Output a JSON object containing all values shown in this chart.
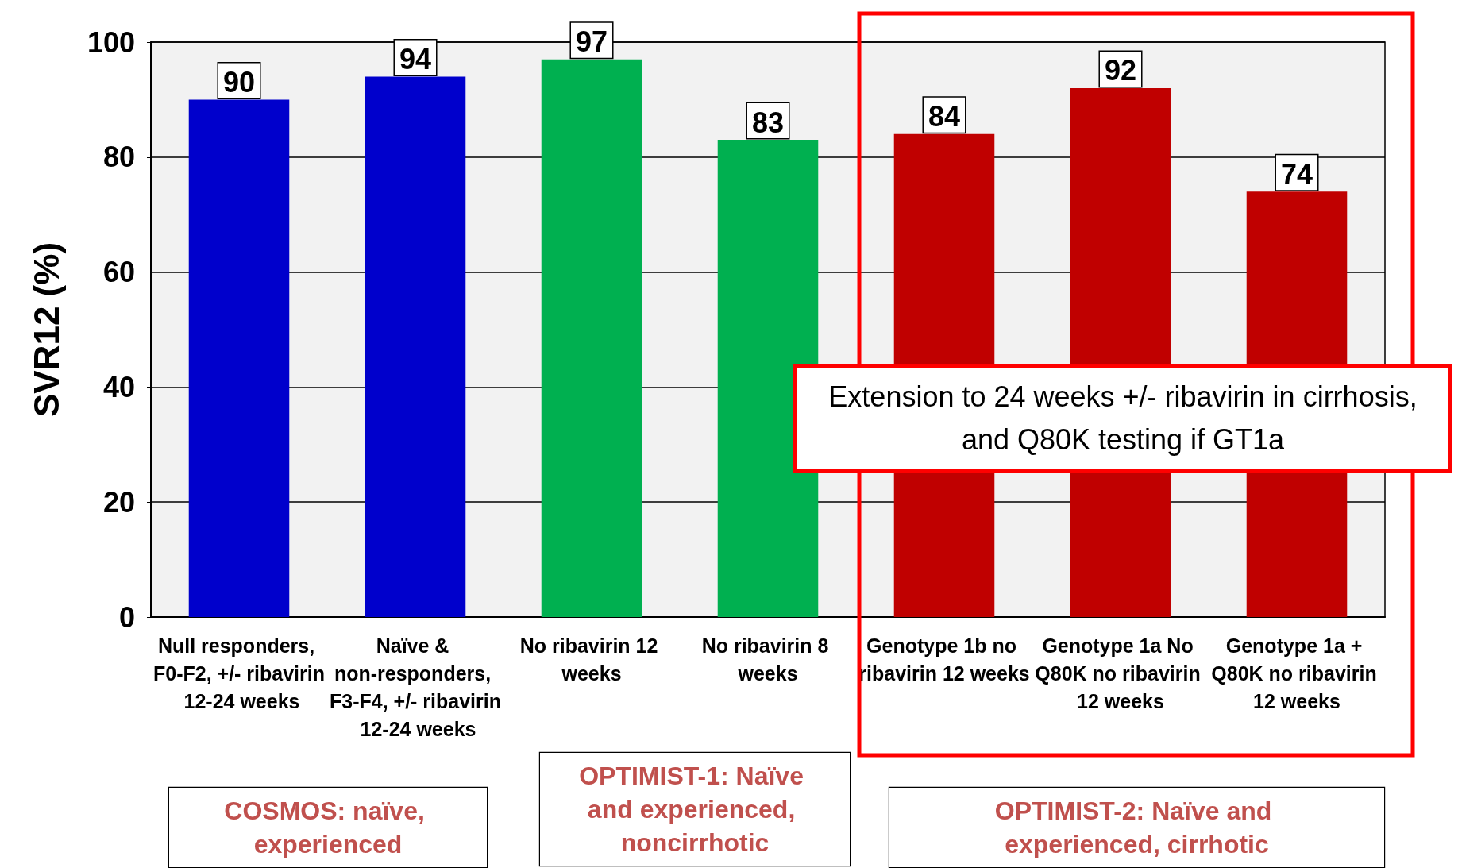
{
  "chart_data": {
    "type": "bar",
    "ylabel": "SVR12 (%)",
    "categories": [
      "Null responders, F0-F2, +/- ribavirin 12-24 weeks",
      "Naïve & non-responders, F3-F4, +/- ribavirin 12-24 weeks",
      "No ribavirin 12 weeks",
      "No ribavirin 8 weeks",
      "Genotype 1b no ribavirin 12 weeks",
      "Genotype 1a No Q80K no ribavirin 12 weeks",
      "Genotype 1a + Q80K no ribavirin 12 weeks"
    ],
    "values": [
      90,
      94,
      97,
      83,
      84,
      92,
      74
    ],
    "colors": [
      "#0000cc",
      "#0000cc",
      "#00b050",
      "#00b050",
      "#c00000",
      "#c00000",
      "#c00000"
    ],
    "ylim": [
      0,
      100
    ],
    "yticks": [
      0,
      20,
      40,
      60,
      80,
      100
    ],
    "grid": "y",
    "data_labels": true,
    "annotations": [
      "COSMOS: naïve, experienced",
      "OPTIMIST-1: Naïve and experienced, noncirrhotic",
      "OPTIMIST-2: Naïve and experienced, cirrhotic",
      "Extension to 24 weeks +/- ribavirin in cirrhosis, and Q80K testing if GT1a"
    ]
  }
}
